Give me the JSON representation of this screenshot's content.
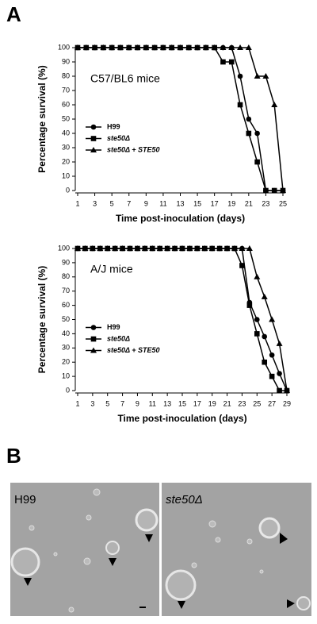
{
  "panel_a": "A",
  "chart_data": [
    {
      "type": "line",
      "annotation": "C57/BL6 mice",
      "xlabel": "Time post-inoculation (days)",
      "ylabel": "Percentage survival (%)",
      "x": [
        1,
        2,
        3,
        4,
        5,
        6,
        7,
        8,
        9,
        10,
        11,
        12,
        13,
        14,
        15,
        16,
        17,
        18,
        19,
        20,
        21,
        22,
        23,
        24,
        25
      ],
      "xlim": [
        1,
        25
      ],
      "xticks": [
        1,
        3,
        5,
        7,
        9,
        11,
        13,
        15,
        17,
        19,
        21,
        23,
        25
      ],
      "ylim": [
        0,
        100
      ],
      "yticks": [
        0,
        10,
        20,
        30,
        40,
        50,
        60,
        70,
        80,
        90,
        100
      ],
      "legend": "center left",
      "series": [
        {
          "name": "H99",
          "color": "#000000",
          "marker": "circle",
          "values": [
            100,
            100,
            100,
            100,
            100,
            100,
            100,
            100,
            100,
            100,
            100,
            100,
            100,
            100,
            100,
            100,
            100,
            100,
            100,
            80,
            50,
            40,
            0,
            0,
            0
          ]
        },
        {
          "name": "ste50Δ",
          "color": "#000000",
          "marker": "square",
          "values": [
            100,
            100,
            100,
            100,
            100,
            100,
            100,
            100,
            100,
            100,
            100,
            100,
            100,
            100,
            100,
            100,
            100,
            90,
            90,
            60,
            40,
            20,
            0,
            0,
            0
          ]
        },
        {
          "name": "ste50Δ + STE50",
          "color": "#000000",
          "marker": "triangle",
          "values": [
            100,
            100,
            100,
            100,
            100,
            100,
            100,
            100,
            100,
            100,
            100,
            100,
            100,
            100,
            100,
            100,
            100,
            100,
            100,
            100,
            100,
            80,
            80,
            60,
            0
          ]
        }
      ]
    },
    {
      "type": "line",
      "annotation": "A/J mice",
      "xlabel": "Time post-inoculation (days)",
      "ylabel": "Percentage survival (%)",
      "x": [
        1,
        2,
        3,
        4,
        5,
        6,
        7,
        8,
        9,
        10,
        11,
        12,
        13,
        14,
        15,
        16,
        17,
        18,
        19,
        20,
        21,
        22,
        23,
        24,
        25,
        26,
        27,
        28,
        29
      ],
      "xlim": [
        1,
        29
      ],
      "xticks": [
        1,
        3,
        5,
        7,
        9,
        11,
        13,
        15,
        17,
        19,
        21,
        23,
        25,
        27,
        29
      ],
      "ylim": [
        0,
        100
      ],
      "yticks": [
        0,
        10,
        20,
        30,
        40,
        50,
        60,
        70,
        80,
        90,
        100
      ],
      "legend": "center left",
      "series": [
        {
          "name": "H99",
          "color": "#000000",
          "marker": "circle",
          "values": [
            100,
            100,
            100,
            100,
            100,
            100,
            100,
            100,
            100,
            100,
            100,
            100,
            100,
            100,
            100,
            100,
            100,
            100,
            100,
            100,
            100,
            100,
            100,
            62,
            50,
            38,
            25,
            12,
            0
          ]
        },
        {
          "name": "ste50Δ",
          "color": "#000000",
          "marker": "square",
          "values": [
            100,
            100,
            100,
            100,
            100,
            100,
            100,
            100,
            100,
            100,
            100,
            100,
            100,
            100,
            100,
            100,
            100,
            100,
            100,
            100,
            100,
            100,
            88,
            60,
            40,
            20,
            10,
            0,
            0
          ]
        },
        {
          "name": "ste50Δ + STE50",
          "color": "#000000",
          "marker": "triangle",
          "values": [
            100,
            100,
            100,
            100,
            100,
            100,
            100,
            100,
            100,
            100,
            100,
            100,
            100,
            100,
            100,
            100,
            100,
            100,
            100,
            100,
            100,
            100,
            100,
            100,
            80,
            66,
            50,
            33,
            0
          ]
        }
      ]
    }
  ],
  "panel_b": {
    "label": "B",
    "images": [
      "H99",
      "ste50Δ"
    ]
  }
}
